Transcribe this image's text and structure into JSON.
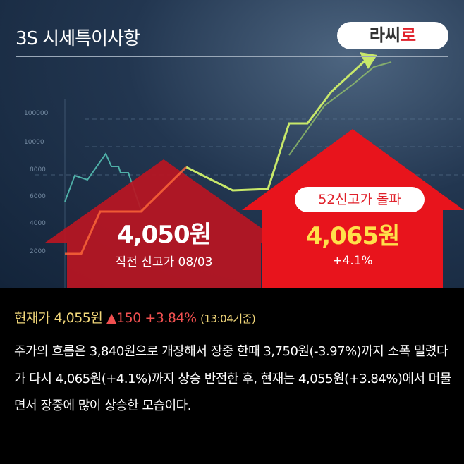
{
  "header": {
    "title": "3S 시세특이사항",
    "logo": {
      "part1": "라씨",
      "part2": "로"
    }
  },
  "background_axis_labels": [
    "100000",
    "10000",
    "8000",
    "6000",
    "4000",
    "2000"
  ],
  "previous_high": {
    "price": "4,050원",
    "label": "직전 신고가 08/03"
  },
  "new_high": {
    "badge": "52신고가 돌파",
    "price": "4,065원",
    "change": "+4.1%"
  },
  "current": {
    "label": "현재가 4,055원",
    "change": "▲150 +3.84%",
    "time": "(13:04기준)"
  },
  "summary": "주가의 흐름은 3,840원으로 개장해서 장중 한때 3,750원(-3.97%)까지 소폭 밀렸다가 다시 4,065원(+4.1%)까지 상승 반전한 후, 현재는 4,055원(+3.84%)에서 머물면서 장중에 많이 상승한 모습이다.",
  "colors": {
    "left_house": "#b81622",
    "right_house": "#e8141c",
    "accent_yellow": "#ffe04a",
    "up_red": "#f05050"
  }
}
